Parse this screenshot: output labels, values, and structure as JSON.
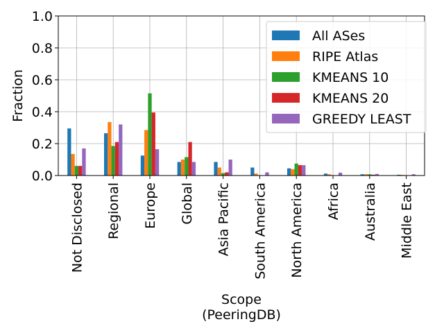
{
  "chart_data": {
    "type": "bar",
    "title": "",
    "xlabel": "Scope\n(PeeringDB)",
    "ylabel": "Fraction",
    "ylim": [
      0,
      1.0
    ],
    "yticks": [
      "0.0",
      "0.2",
      "0.4",
      "0.6",
      "0.8",
      "1.0"
    ],
    "grid": true,
    "legend_position": "top-right",
    "categories": [
      "Not Disclosed",
      "Regional",
      "Europe",
      "Global",
      "Asia Pacific",
      "South America",
      "North America",
      "Africa",
      "Australia",
      "Middle East"
    ],
    "series": [
      {
        "name": "All ASes",
        "color": "#1f77b4",
        "values": [
          0.295,
          0.265,
          0.125,
          0.085,
          0.085,
          0.05,
          0.045,
          0.012,
          0.008,
          0.005
        ]
      },
      {
        "name": "RIPE Atlas",
        "color": "#ff7f0e",
        "values": [
          0.135,
          0.335,
          0.285,
          0.1,
          0.05,
          0.012,
          0.04,
          0.008,
          0.008,
          0.004
        ]
      },
      {
        "name": "KMEANS 10",
        "color": "#2ca02c",
        "values": [
          0.06,
          0.185,
          0.515,
          0.115,
          0.015,
          0.002,
          0.075,
          0.002,
          0.008,
          0.002
        ]
      },
      {
        "name": "KMEANS 20",
        "color": "#d62728",
        "values": [
          0.06,
          0.21,
          0.395,
          0.21,
          0.02,
          0.002,
          0.065,
          0.002,
          0.005,
          0.002
        ]
      },
      {
        "name": "GREEDY LEAST",
        "color": "#9467bd",
        "values": [
          0.17,
          0.32,
          0.165,
          0.085,
          0.1,
          0.02,
          0.065,
          0.018,
          0.01,
          0.008
        ]
      }
    ]
  }
}
